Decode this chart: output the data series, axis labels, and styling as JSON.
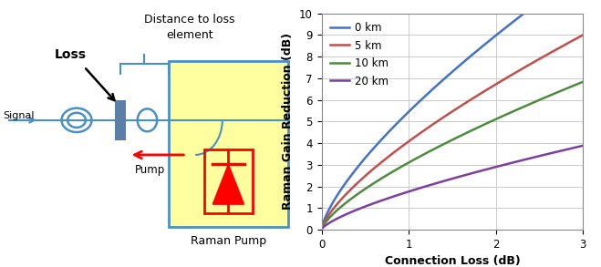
{
  "chart": {
    "xlabel": "Connection Loss (dB)",
    "ylabel": "Raman Gain Reduction (dB)",
    "xlim": [
      0,
      3
    ],
    "ylim": [
      0,
      10
    ],
    "xticks": [
      0,
      1,
      2,
      3
    ],
    "yticks": [
      0,
      1,
      2,
      3,
      4,
      5,
      6,
      7,
      8,
      9,
      10
    ],
    "lines": [
      {
        "label": "0 km",
        "color": "#4472C4",
        "k": 5.45,
        "p": 0.72
      },
      {
        "label": "5 km",
        "color": "#C0504D",
        "k": 4.08,
        "p": 0.72
      },
      {
        "label": "10 km",
        "color": "#4E8B3F",
        "k": 3.1,
        "p": 0.72
      },
      {
        "label": "20 km",
        "color": "#7B3FA0",
        "k": 1.76,
        "p": 0.72
      }
    ]
  },
  "diagram": {
    "signal_color": "#4A90C4",
    "box_color": "#4A90C4",
    "pump_box_fill": "#FFFFA0",
    "pump_box_border": "#4A90C4",
    "pump_arrow_color": "#FF0000",
    "loss_rect_color": "#5B7FA6",
    "diode_color": "#FF0000",
    "text_color": "#000000"
  }
}
